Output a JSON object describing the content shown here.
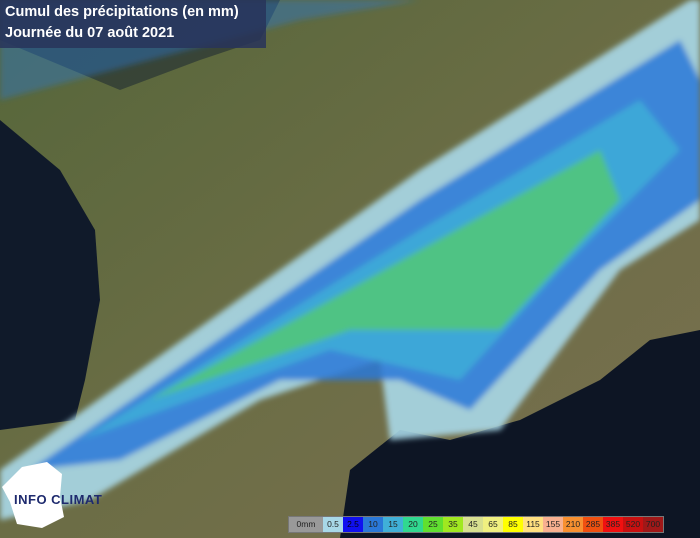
{
  "title": {
    "line1": "Cumul des précipitations (en mm)",
    "line2": "Journée du 07 août 2021"
  },
  "legend": {
    "unit_label": "0mm",
    "classes": [
      {
        "label": "0.5",
        "color": "#a8d8e8"
      },
      {
        "label": "2.5",
        "color": "#1010f0"
      },
      {
        "label": "10",
        "color": "#2a78d8"
      },
      {
        "label": "15",
        "color": "#40b0d8"
      },
      {
        "label": "20",
        "color": "#30d890"
      },
      {
        "label": "25",
        "color": "#60e030"
      },
      {
        "label": "35",
        "color": "#a0e820"
      },
      {
        "label": "45",
        "color": "#d8e090"
      },
      {
        "label": "65",
        "color": "#f0f080"
      },
      {
        "label": "85",
        "color": "#ffff00"
      },
      {
        "label": "115",
        "color": "#ffe080"
      },
      {
        "label": "155",
        "color": "#f8b090"
      },
      {
        "label": "210",
        "color": "#f89030"
      },
      {
        "label": "285",
        "color": "#f05010"
      },
      {
        "label": "385",
        "color": "#f01010"
      },
      {
        "label": "520",
        "color": "#c81010"
      },
      {
        "label": "700",
        "color": "#a01818"
      }
    ]
  },
  "logo": {
    "text": "INFO CLIMAT"
  }
}
